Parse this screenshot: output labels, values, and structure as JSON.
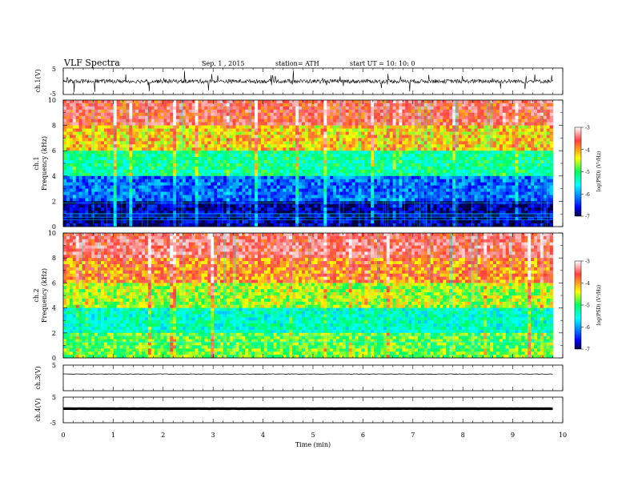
{
  "header": {
    "title": "VLF  Spectra",
    "date": "Sep. 1  , 2015",
    "station": "station= ATH",
    "start": "start  UT  =   10: 10: 0"
  },
  "colorbar": {
    "label": "log(PSD) (V²/Hz)",
    "ticks": [
      "-3",
      "-4",
      "-5",
      "-6",
      "-7"
    ],
    "colors": [
      "#ffffff",
      "#ff4040",
      "#ffff00",
      "#00ff60",
      "#00ffff",
      "#0080ff",
      "#0000ff",
      "#000040"
    ]
  },
  "chart_data": [
    {
      "type": "line",
      "name": "ch1-waveform",
      "ylabel": "ch.1(V)",
      "ylim": [
        -5,
        5
      ],
      "yticks": [
        "5",
        "-5"
      ],
      "x": [
        0,
        9.8
      ],
      "approx_level": 0,
      "approx_amplitude": 1.5,
      "color": "#000000"
    },
    {
      "type": "heatmap",
      "name": "ch1-spectrogram",
      "ylabel_top": "ch.1",
      "ylabel": "Frequency  (kHz)",
      "ylim": [
        0,
        10
      ],
      "yticks": [
        "0",
        "2",
        "4",
        "6",
        "8",
        "10"
      ],
      "x_range_min": [
        0,
        9.8
      ],
      "freq_bands_kHz": [
        0,
        2,
        4,
        6,
        8,
        10
      ],
      "band_logPSD": [
        -6.8,
        -6.2,
        -5.2,
        -4.3,
        -3.7
      ]
    },
    {
      "type": "heatmap",
      "name": "ch2-spectrogram",
      "ylabel_top": "ch.2",
      "ylabel": "Frequency  (kHz)",
      "ylim": [
        0,
        10
      ],
      "yticks": [
        "0",
        "2",
        "4",
        "6",
        "8",
        "10"
      ],
      "x_range_min": [
        0,
        9.8
      ],
      "freq_bands_kHz": [
        0,
        2,
        4,
        6,
        8,
        10
      ],
      "band_logPSD": [
        -4.8,
        -5.4,
        -4.6,
        -4.0,
        -3.6
      ]
    },
    {
      "type": "line",
      "name": "ch3-waveform",
      "ylabel": "ch.3(V)",
      "ylim": [
        -5,
        5
      ],
      "yticks": [
        "5"
      ],
      "x": [
        0,
        9.8
      ],
      "approx_level": 1.5,
      "color": "#000000"
    },
    {
      "type": "line",
      "name": "ch4-waveform",
      "ylabel": "ch.4(V)",
      "ylim": [
        -5,
        5
      ],
      "yticks": [
        "5",
        "-5"
      ],
      "x": [
        0,
        9.8
      ],
      "approx_level": 0.5,
      "color": "#000000"
    }
  ],
  "xaxis": {
    "label": "Time  (min)",
    "ticks": [
      "0",
      "1",
      "2",
      "3",
      "4",
      "5",
      "6",
      "7",
      "8",
      "9",
      "10"
    ],
    "range": [
      0,
      10
    ]
  }
}
